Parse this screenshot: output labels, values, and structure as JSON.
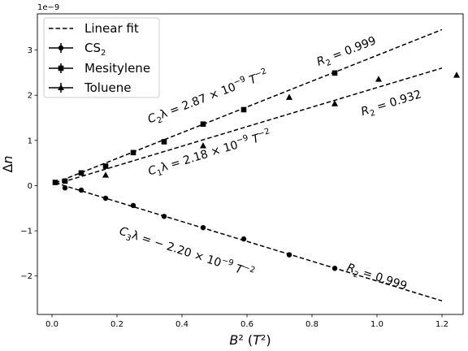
{
  "chart_data": {
    "type": "scatter",
    "xlabel": "B² (T²)",
    "ylabel": "Δn",
    "scale_label": "1e−9",
    "xlim": [
      -0.045,
      1.265
    ],
    "ylim": [
      -2.85,
      3.8
    ],
    "xticks": [
      0.0,
      0.2,
      0.4,
      0.6,
      0.8,
      1.0,
      1.2
    ],
    "xtick_labels": [
      "0.0",
      "0.2",
      "0.4",
      "0.6",
      "0.8",
      "1.0",
      "1.2"
    ],
    "yticks": [
      -2,
      -1,
      0,
      1,
      2,
      3
    ],
    "ytick_labels": [
      "−2",
      "−1",
      "0",
      "1",
      "2",
      "3"
    ],
    "grid": false,
    "legend_position": "top-left",
    "legend": [
      {
        "label": "Linear fit",
        "marker": "dashed-line"
      },
      {
        "label_main": "CS",
        "label_sub": "2",
        "marker": "circle"
      },
      {
        "label_main": "Mesitylene",
        "label_sub": "",
        "marker": "square"
      },
      {
        "label_main": "Toluene",
        "label_sub": "",
        "marker": "triangle"
      }
    ],
    "series": [
      {
        "marker": "circle",
        "x": [
          0.04,
          0.09,
          0.165,
          0.25,
          0.345,
          0.465,
          0.59,
          0.73,
          0.87
        ],
        "y": [
          -0.05,
          -0.1,
          -0.28,
          -0.44,
          -0.68,
          -0.93,
          -1.18,
          -1.53,
          -1.83
        ]
      },
      {
        "marker": "square",
        "x": [
          0.01,
          0.04,
          0.09,
          0.165,
          0.25,
          0.345,
          0.465,
          0.59,
          0.87
        ],
        "y": [
          0.07,
          0.1,
          0.28,
          0.43,
          0.73,
          0.97,
          1.36,
          1.68,
          2.49
        ]
      },
      {
        "marker": "triangle",
        "x": [
          0.165,
          0.465,
          0.73,
          0.87,
          1.005,
          1.245
        ],
        "y": [
          0.23,
          0.88,
          1.95,
          1.81,
          2.35,
          2.44
        ]
      }
    ],
    "fits": [
      {
        "x": [
          0.01,
          1.2
        ],
        "y": [
          0.06,
          3.45
        ]
      },
      {
        "x": [
          0.01,
          1.2
        ],
        "y": [
          0.03,
          2.6
        ]
      },
      {
        "x": [
          0.01,
          1.2
        ],
        "y": [
          0.06,
          -2.55
        ]
      }
    ],
    "annotations": [
      {
        "parts": [
          "C",
          "2",
          "λ = 2.87 × 10",
          "−9",
          " T",
          "−2"
        ],
        "x": 0.3,
        "y": 1.38,
        "rotate": -21
      },
      {
        "parts": [
          "C",
          "1",
          "λ = 2.18 × 10",
          "−9",
          " T",
          "−2"
        ],
        "x": 0.3,
        "y": 0.23,
        "rotate": -17
      },
      {
        "parts": [
          "C",
          "3",
          "λ = − 2.20 × 10",
          "−9",
          " T",
          "−2"
        ],
        "x": 0.205,
        "y": -1.07,
        "rotate": 18
      },
      {
        "parts": [
          "R",
          "2",
          " = 0.999"
        ],
        "x": 0.82,
        "y": 2.65,
        "rotate": -21
      },
      {
        "parts": [
          "R",
          "2",
          " = 0.932"
        ],
        "x": 0.955,
        "y": 1.55,
        "rotate": -17
      },
      {
        "parts": [
          "R",
          "2",
          " = 0.999"
        ],
        "x": 0.905,
        "y": -1.88,
        "rotate": 18
      }
    ]
  }
}
